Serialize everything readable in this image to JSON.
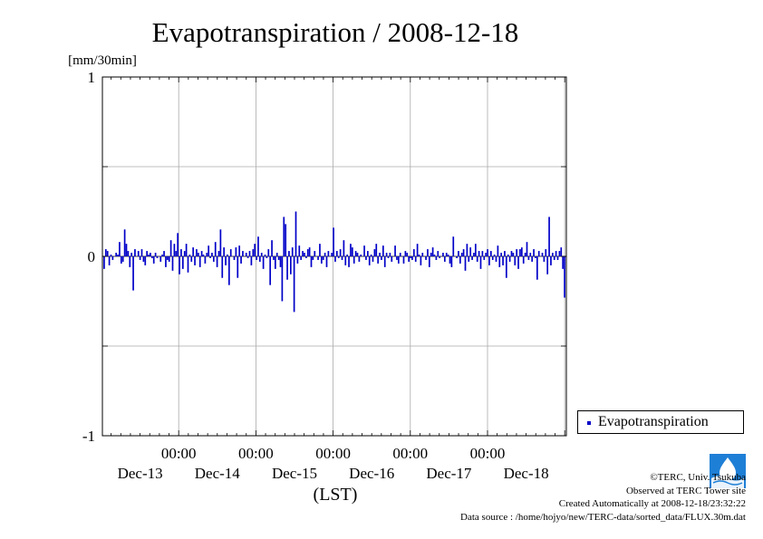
{
  "chart_data": {
    "type": "bar",
    "title": "Evapotranspiration / 2008-12-18",
    "ylabel": "[mm/30min]",
    "xlabel": "(LST)",
    "ylim": [
      -1,
      1
    ],
    "y_ticks": [
      "1",
      "0",
      "-1"
    ],
    "x_ticks": [
      {
        "time": "00:00",
        "date": "Dec-13"
      },
      {
        "time": "00:00",
        "date": "Dec-14"
      },
      {
        "time": "00:00",
        "date": "Dec-15"
      },
      {
        "time": "00:00",
        "date": "Dec-16"
      },
      {
        "time": "00:00",
        "date": "Dec-17"
      },
      {
        "time": "00:00",
        "date": "Dec-18"
      }
    ],
    "grid": true,
    "legend_position": "right-bottom",
    "series": [
      {
        "name": "Evapotranspiration",
        "color": "#0000c8",
        "values": [
          -0.07,
          0.04,
          0.03,
          -0.05,
          0.01,
          -0.02,
          0.0,
          0.02,
          0.01,
          0.08,
          -0.04,
          -0.03,
          0.15,
          0.07,
          0.03,
          -0.06,
          0.02,
          -0.19,
          0.04,
          0.0,
          0.03,
          -0.02,
          0.04,
          -0.03,
          -0.05,
          0.03,
          0.01,
          0.02,
          -0.01,
          -0.04,
          0.02,
          -0.01,
          0.0,
          -0.03,
          0.01,
          0.03,
          -0.06,
          -0.02,
          -0.03,
          0.09,
          -0.08,
          0.07,
          0.03,
          0.13,
          -0.1,
          0.04,
          -0.07,
          0.03,
          0.07,
          -0.09,
          0.01,
          -0.03,
          0.05,
          -0.05,
          0.04,
          0.02,
          -0.06,
          0.03,
          0.01,
          -0.04,
          0.02,
          0.06,
          -0.01,
          0.02,
          -0.03,
          0.08,
          -0.06,
          0.03,
          0.15,
          -0.12,
          0.05,
          -0.05,
          0.01,
          -0.16,
          0.04,
          0.0,
          -0.02,
          0.05,
          -0.12,
          0.06,
          -0.04,
          0.03,
          0.0,
          0.02,
          -0.01,
          0.03,
          -0.05,
          0.04,
          0.07,
          -0.02,
          0.11,
          -0.03,
          0.02,
          -0.07,
          0.01,
          -0.01,
          0.04,
          -0.16,
          0.09,
          -0.02,
          -0.07,
          0.02,
          -0.02,
          -0.06,
          -0.25,
          0.22,
          0.18,
          -0.13,
          0.03,
          -0.1,
          0.05,
          -0.31,
          0.25,
          -0.04,
          0.06,
          -0.02,
          0.03,
          0.02,
          -0.01,
          0.04,
          0.05,
          -0.06,
          -0.02,
          0.03,
          0.0,
          -0.02,
          0.07,
          -0.04,
          -0.02,
          0.02,
          -0.06,
          0.03,
          0.0,
          0.02,
          0.16,
          -0.03,
          0.03,
          -0.01,
          0.04,
          -0.02,
          0.09,
          -0.05,
          0.01,
          -0.06,
          0.07,
          0.05,
          -0.04,
          0.03,
          0.02,
          -0.03,
          0.01,
          0.0,
          0.06,
          -0.02,
          0.03,
          -0.05,
          0.01,
          -0.03,
          0.04,
          0.07,
          -0.04,
          0.02,
          -0.02,
          0.06,
          -0.06,
          0.02,
          -0.01,
          0.02,
          -0.03,
          0.0,
          0.06,
          -0.02,
          -0.04,
          0.02,
          0.0,
          -0.04,
          0.03,
          0.02,
          -0.03,
          -0.01,
          -0.02,
          0.04,
          -0.03,
          0.07,
          0.01,
          -0.05,
          0.02,
          0.0,
          -0.02,
          0.04,
          -0.06,
          0.02,
          0.05,
          0.01,
          -0.02,
          0.03,
          -0.01,
          0.0,
          0.02,
          -0.03,
          0.02,
          0.01,
          -0.04,
          -0.06,
          0.11,
          0.0,
          -0.01,
          0.03,
          -0.04,
          0.02,
          0.04,
          -0.08,
          0.07,
          -0.03,
          0.05,
          -0.02,
          0.02,
          0.07,
          -0.03,
          0.03,
          -0.07,
          0.03,
          -0.02,
          0.02,
          0.04,
          -0.05,
          0.03,
          -0.02,
          0.01,
          -0.03,
          0.06,
          -0.06,
          0.02,
          -0.05,
          0.03,
          -0.12,
          0.01,
          -0.03,
          0.03,
          0.02,
          -0.05,
          0.04,
          -0.07,
          0.04,
          0.05,
          -0.04,
          0.02,
          0.08,
          -0.02,
          0.02,
          -0.03,
          0.04,
          -0.01,
          -0.13,
          0.03,
          0.0,
          0.02,
          -0.03,
          0.04,
          -0.1,
          0.22,
          -0.05,
          0.02,
          -0.02,
          0.03,
          -0.02,
          0.03,
          0.05,
          -0.07,
          -0.23
        ]
      }
    ]
  },
  "legend": {
    "label": "Evapotranspiration"
  },
  "credits": {
    "copyright": "©TERC, Univ. Tsukuba",
    "site": "Observed at TERC Tower site",
    "created": "Created Automatically at 2008-12-18/23:32:22",
    "source": "Data source : /home/hojyo/new/TERC-data/sorted_data/FLUX.30m.dat"
  },
  "logo": {
    "text": "TERC",
    "color": "#1e7fd6"
  }
}
